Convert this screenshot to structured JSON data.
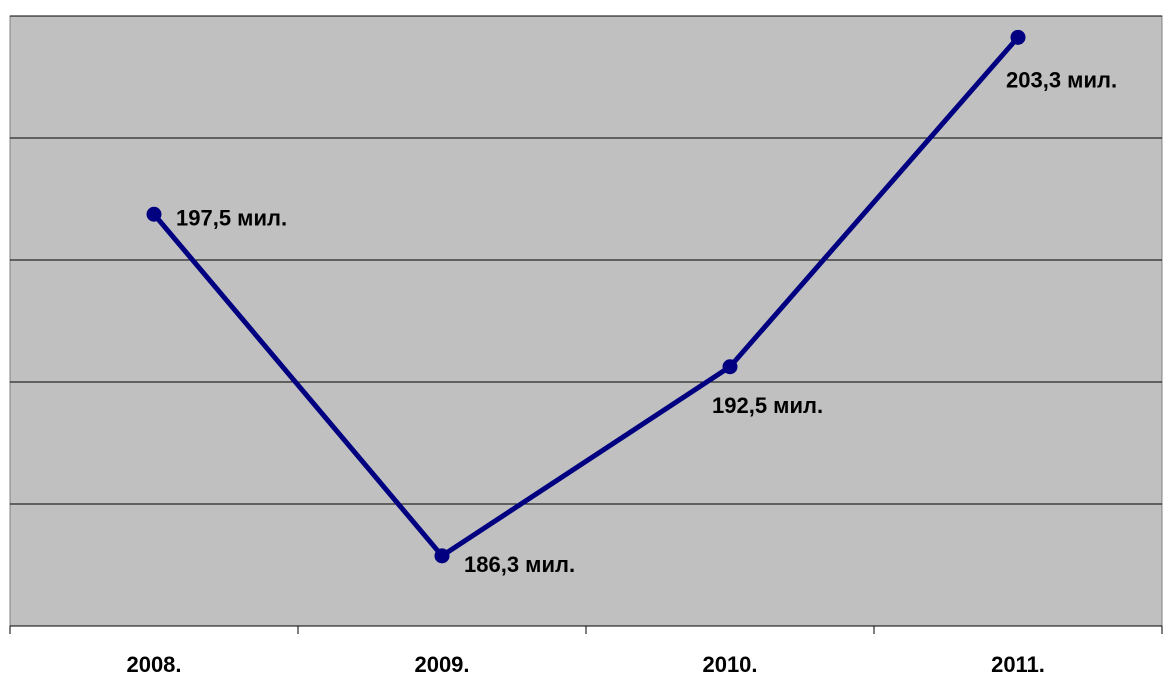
{
  "chart_data": {
    "type": "line",
    "title": "",
    "xlabel": "",
    "ylabel": "",
    "categories": [
      "2008.",
      "2009.",
      "2010.",
      "2011."
    ],
    "series": [
      {
        "values": [
          197.5,
          186.3,
          192.5,
          203.3
        ],
        "labels": [
          "197,5 мил.",
          "186,3 мил.",
          "192,5 мил.",
          "203,3 мил."
        ]
      }
    ],
    "ylim": [
      184,
      204
    ],
    "y_grid_step": 4,
    "grid": true,
    "legend": "none",
    "colors": {
      "plot_background": "#c0c0c0",
      "line": "#000080",
      "gridline": "#000000"
    }
  }
}
